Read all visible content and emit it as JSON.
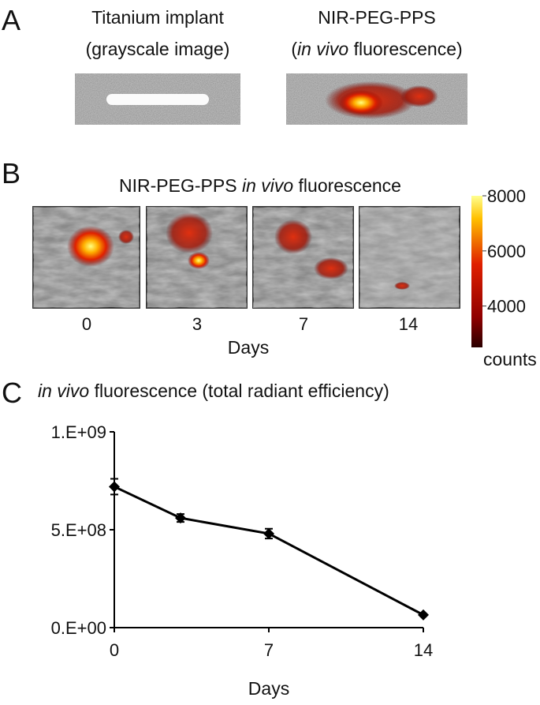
{
  "panel_a": {
    "label": "A",
    "left_title": [
      "Titanium implant",
      "(grayscale image)"
    ],
    "right_title": "NIR-PEG-PPS",
    "right_subtitle": [
      "(",
      "in vivo",
      " fluorescence)"
    ]
  },
  "panel_b": {
    "label": "B",
    "title": [
      "NIR-PEG-PPS ",
      "in vivo",
      " fluorescence"
    ],
    "days": [
      0,
      3,
      7,
      14
    ],
    "x_label": "Days",
    "colorbar": {
      "lim": [
        2500,
        8000
      ],
      "ticks": [
        8000,
        6000,
        4000
      ],
      "label": "counts"
    }
  },
  "panel_c": {
    "label": "C"
  },
  "chart_data": {
    "type": "line",
    "title": [
      "in vivo",
      " fluorescence (total radiant efficiency)"
    ],
    "x_label": "Days",
    "x": [
      0,
      3,
      7,
      14
    ],
    "series": [
      {
        "name": "NIR-PEG-PPS",
        "color": "#000000",
        "values": [
          720000000,
          560000000,
          480000000,
          65000000
        ],
        "errors": [
          40000000,
          20000000,
          25000000,
          5000000
        ]
      }
    ],
    "xlim": [
      0,
      14
    ],
    "xticks": [
      0,
      7,
      14
    ],
    "ylim": [
      0,
      1000000000
    ],
    "yticks": [
      {
        "value": 0,
        "label": "0.E+00"
      },
      {
        "value": 500000000,
        "label": "5.E+08"
      },
      {
        "value": 1000000000,
        "label": "1.E+09"
      }
    ]
  }
}
